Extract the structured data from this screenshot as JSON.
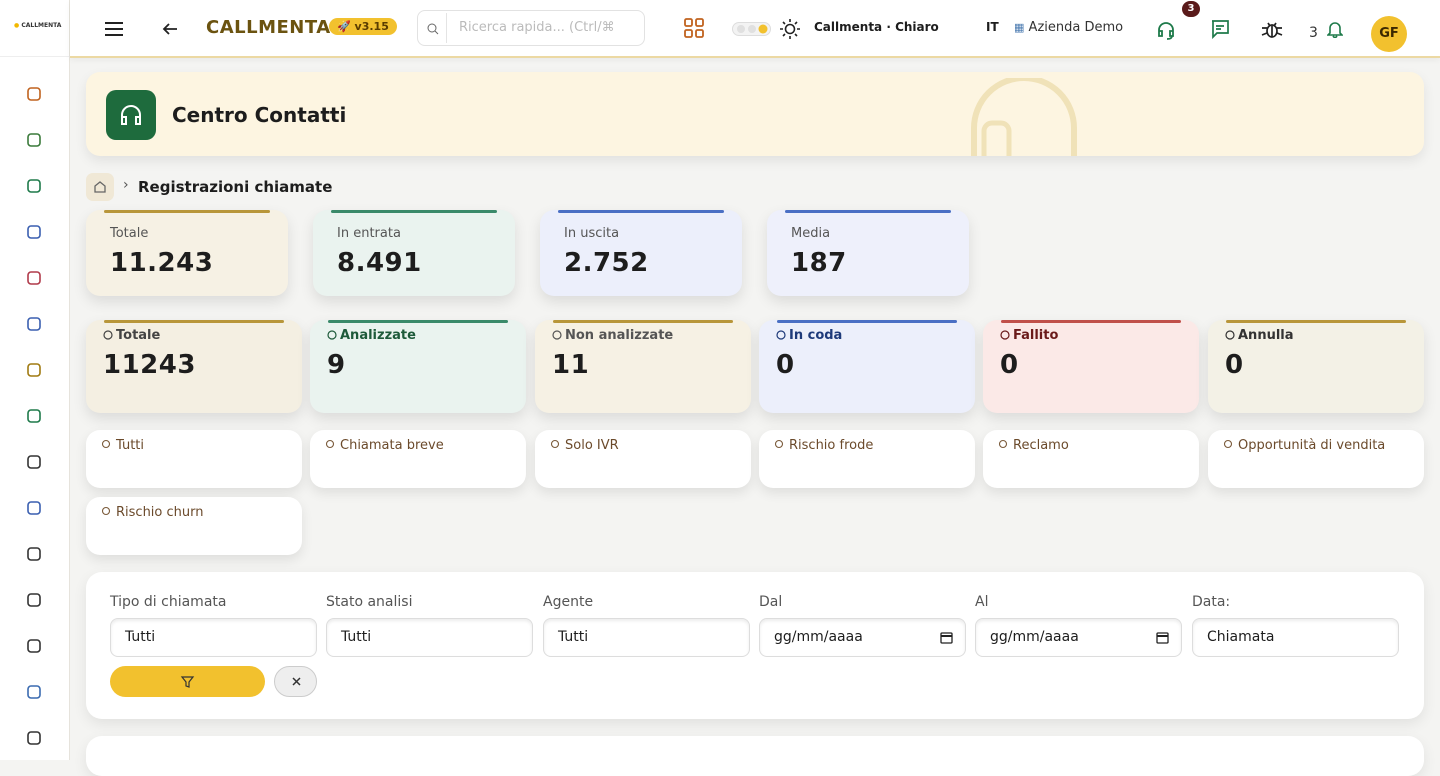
{
  "sidebar": {
    "logo": "CALLMENTA"
  },
  "topbar": {
    "brand": "CALLMENTA",
    "version": "v3.15",
    "search_placeholder": "Ricerca rapida... (Ctrl/⌘",
    "theme": "Callmenta · Chiaro",
    "language": "IT",
    "company": "Azienda Demo",
    "support_badge": 3,
    "notifications": 3,
    "avatar": "GF"
  },
  "header": {
    "title": "Centro Contatti"
  },
  "breadcrumb": {
    "current": "Registrazioni chiamate"
  },
  "summary_cards": [
    {
      "label": "Totale",
      "value": "11.243"
    },
    {
      "label": "In entrata",
      "value": "8.491"
    },
    {
      "label": "In uscita",
      "value": "2.752"
    },
    {
      "label": "Media",
      "value": 187
    }
  ],
  "status_cards": [
    {
      "label": "Totale",
      "value": 11243
    },
    {
      "label": "Analizzate",
      "value": 9
    },
    {
      "label": "Non analizzate",
      "value": 11
    },
    {
      "label": "In coda",
      "value": 0
    },
    {
      "label": "Fallito",
      "value": 0
    },
    {
      "label": "Annulla",
      "value": 0
    }
  ],
  "filter_chips": [
    "Tutti",
    "Chiamata breve",
    "Solo IVR",
    "Rischio frode",
    "Reclamo",
    "Opportunità di vendita",
    "Rischio churn"
  ],
  "filters": [
    {
      "label": "Tipo di chiamata",
      "value": "Tutti"
    },
    {
      "label": "Stato analisi",
      "value": "Tutti"
    },
    {
      "label": "Agente",
      "value": "Tutti"
    },
    {
      "label": "Dal",
      "value": "gg/mm/aaaa"
    },
    {
      "label": "Al",
      "value": "gg/mm/aaaa"
    },
    {
      "label": "Data:",
      "value": "Chiamata"
    }
  ]
}
